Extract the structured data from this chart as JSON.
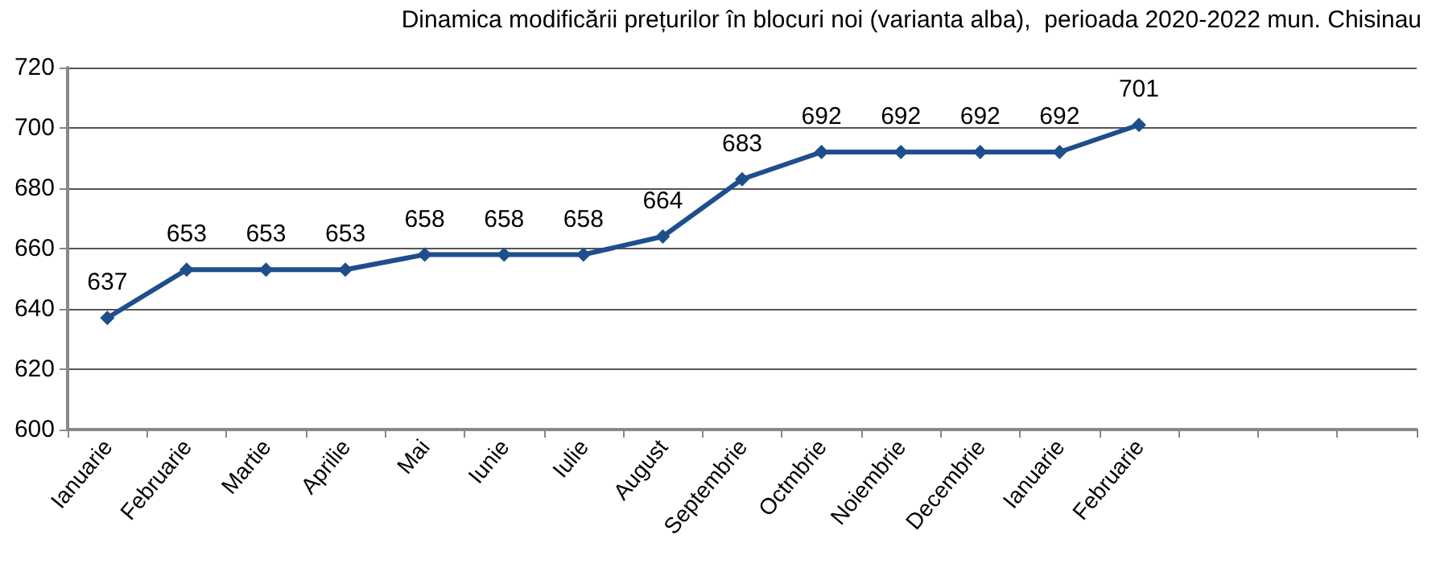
{
  "chart_data": {
    "type": "line",
    "title": "Dinamica modificării prețurilor în blocuri noi (varianta alba),  perioada 2020-2022 mun. Chisinau",
    "categories": [
      "Ianuarie",
      "Februarie",
      "Martie",
      "Aprilie",
      "Mai",
      "Iunie",
      "Iulie",
      "August",
      "Septembrie",
      "Octmbrie",
      "Noiembrie",
      "Decembrie",
      "Ianuarie",
      "Februarie",
      null,
      null,
      null
    ],
    "series": [
      {
        "color": "#1f4e8c",
        "values": [
          637,
          653,
          653,
          653,
          658,
          658,
          658,
          664,
          683,
          692,
          692,
          692,
          692,
          701,
          null,
          null,
          null
        ]
      }
    ],
    "ylim": [
      600,
      720
    ],
    "yticks": [
      600,
      620,
      640,
      660,
      680,
      700,
      720
    ],
    "grid": "y",
    "marker": "diamond",
    "line_style": "solid",
    "data_labels": true
  }
}
